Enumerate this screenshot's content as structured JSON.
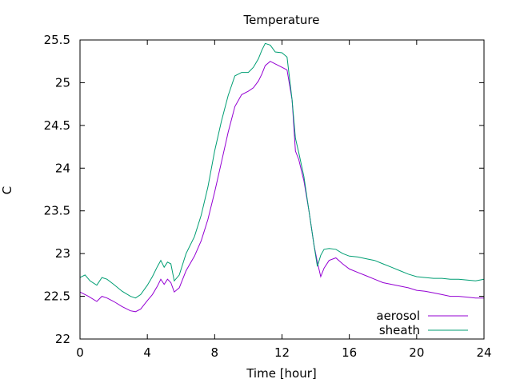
{
  "chart_data": {
    "type": "line",
    "title": "Temperature",
    "xlabel": "Time [hour]",
    "ylabel": "C",
    "xlim": [
      0,
      24
    ],
    "ylim": [
      22,
      25.5
    ],
    "x_ticks": [
      0,
      4,
      8,
      12,
      16,
      20,
      24
    ],
    "x_tick_labels": [
      "0",
      "4",
      "8",
      "12",
      "16",
      "20",
      "24"
    ],
    "y_ticks": [
      22,
      22.5,
      23,
      23.5,
      24,
      24.5,
      25,
      25.5
    ],
    "y_tick_labels": [
      "22",
      "22.5",
      "23",
      "23.5",
      "24",
      "24.5",
      "25",
      "25.5"
    ],
    "grid": false,
    "legend_position": "bottom-right",
    "series": [
      {
        "name": "aerosol",
        "color": "#9400d3",
        "x": [
          0,
          0.5,
          1,
          1.3,
          1.6,
          2,
          2.5,
          3,
          3.3,
          3.6,
          4,
          4.3,
          4.6,
          4.8,
          5,
          5.2,
          5.4,
          5.6,
          5.9,
          6.3,
          6.8,
          7.2,
          7.6,
          8,
          8.4,
          8.8,
          9.2,
          9.6,
          10,
          10.3,
          10.6,
          10.8,
          11,
          11.3,
          11.6,
          12,
          12.3,
          12.6,
          12.8,
          13,
          13.3,
          13.6,
          13.9,
          14.1,
          14.3,
          14.5,
          14.8,
          15.2,
          15.6,
          16,
          16.5,
          17,
          17.5,
          18,
          18.5,
          19,
          19.5,
          20,
          20.5,
          21,
          21.5,
          22,
          22.5,
          23,
          23.5,
          24
        ],
        "y": [
          22.55,
          22.5,
          22.44,
          22.5,
          22.48,
          22.44,
          22.38,
          22.33,
          22.32,
          22.35,
          22.45,
          22.52,
          22.62,
          22.7,
          22.64,
          22.7,
          22.66,
          22.55,
          22.6,
          22.8,
          22.97,
          23.15,
          23.4,
          23.72,
          24.07,
          24.42,
          24.72,
          24.86,
          24.9,
          24.94,
          25.02,
          25.1,
          25.2,
          25.25,
          25.22,
          25.18,
          25.15,
          24.8,
          24.2,
          24.1,
          23.85,
          23.5,
          23.1,
          22.9,
          22.73,
          22.83,
          22.92,
          22.95,
          22.88,
          22.82,
          22.78,
          22.74,
          22.7,
          22.66,
          22.64,
          22.62,
          22.6,
          22.57,
          22.56,
          22.54,
          22.52,
          22.5,
          22.5,
          22.49,
          22.48,
          22.48
        ]
      },
      {
        "name": "sheath",
        "color": "#009e73",
        "x": [
          0,
          0.3,
          0.6,
          1,
          1.3,
          1.6,
          2,
          2.5,
          3,
          3.3,
          3.6,
          4,
          4.3,
          4.6,
          4.8,
          5,
          5.2,
          5.4,
          5.6,
          5.9,
          6.3,
          6.8,
          7.2,
          7.6,
          8,
          8.4,
          8.8,
          9.2,
          9.6,
          10,
          10.3,
          10.6,
          10.8,
          11,
          11.3,
          11.6,
          12,
          12.3,
          12.6,
          12.8,
          13,
          13.3,
          13.6,
          13.9,
          14.1,
          14.3,
          14.5,
          14.8,
          15.2,
          15.6,
          16,
          16.5,
          17,
          17.5,
          18,
          18.5,
          19,
          19.5,
          20,
          20.5,
          21,
          21.5,
          22,
          22.5,
          23,
          23.5,
          24
        ],
        "y": [
          22.72,
          22.75,
          22.68,
          22.63,
          22.72,
          22.7,
          22.64,
          22.56,
          22.5,
          22.48,
          22.52,
          22.63,
          22.73,
          22.85,
          22.92,
          22.84,
          22.9,
          22.88,
          22.68,
          22.75,
          23.0,
          23.2,
          23.45,
          23.78,
          24.2,
          24.55,
          24.85,
          25.08,
          25.12,
          25.12,
          25.18,
          25.28,
          25.38,
          25.46,
          25.44,
          25.36,
          25.35,
          25.3,
          24.8,
          24.35,
          24.18,
          23.9,
          23.5,
          23.1,
          22.85,
          22.98,
          23.05,
          23.06,
          23.05,
          23.0,
          22.97,
          22.96,
          22.94,
          22.92,
          22.88,
          22.84,
          22.8,
          22.76,
          22.73,
          22.72,
          22.71,
          22.71,
          22.7,
          22.7,
          22.69,
          22.68,
          22.7
        ]
      }
    ]
  }
}
